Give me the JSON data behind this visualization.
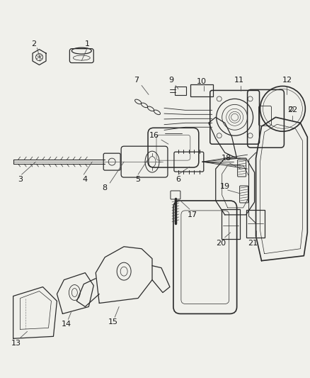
{
  "bg_color": "#f0f0eb",
  "line_color": "#2a2a2a",
  "label_color": "#1a1a1a",
  "fig_w": 4.38,
  "fig_h": 5.33,
  "dpi": 100
}
